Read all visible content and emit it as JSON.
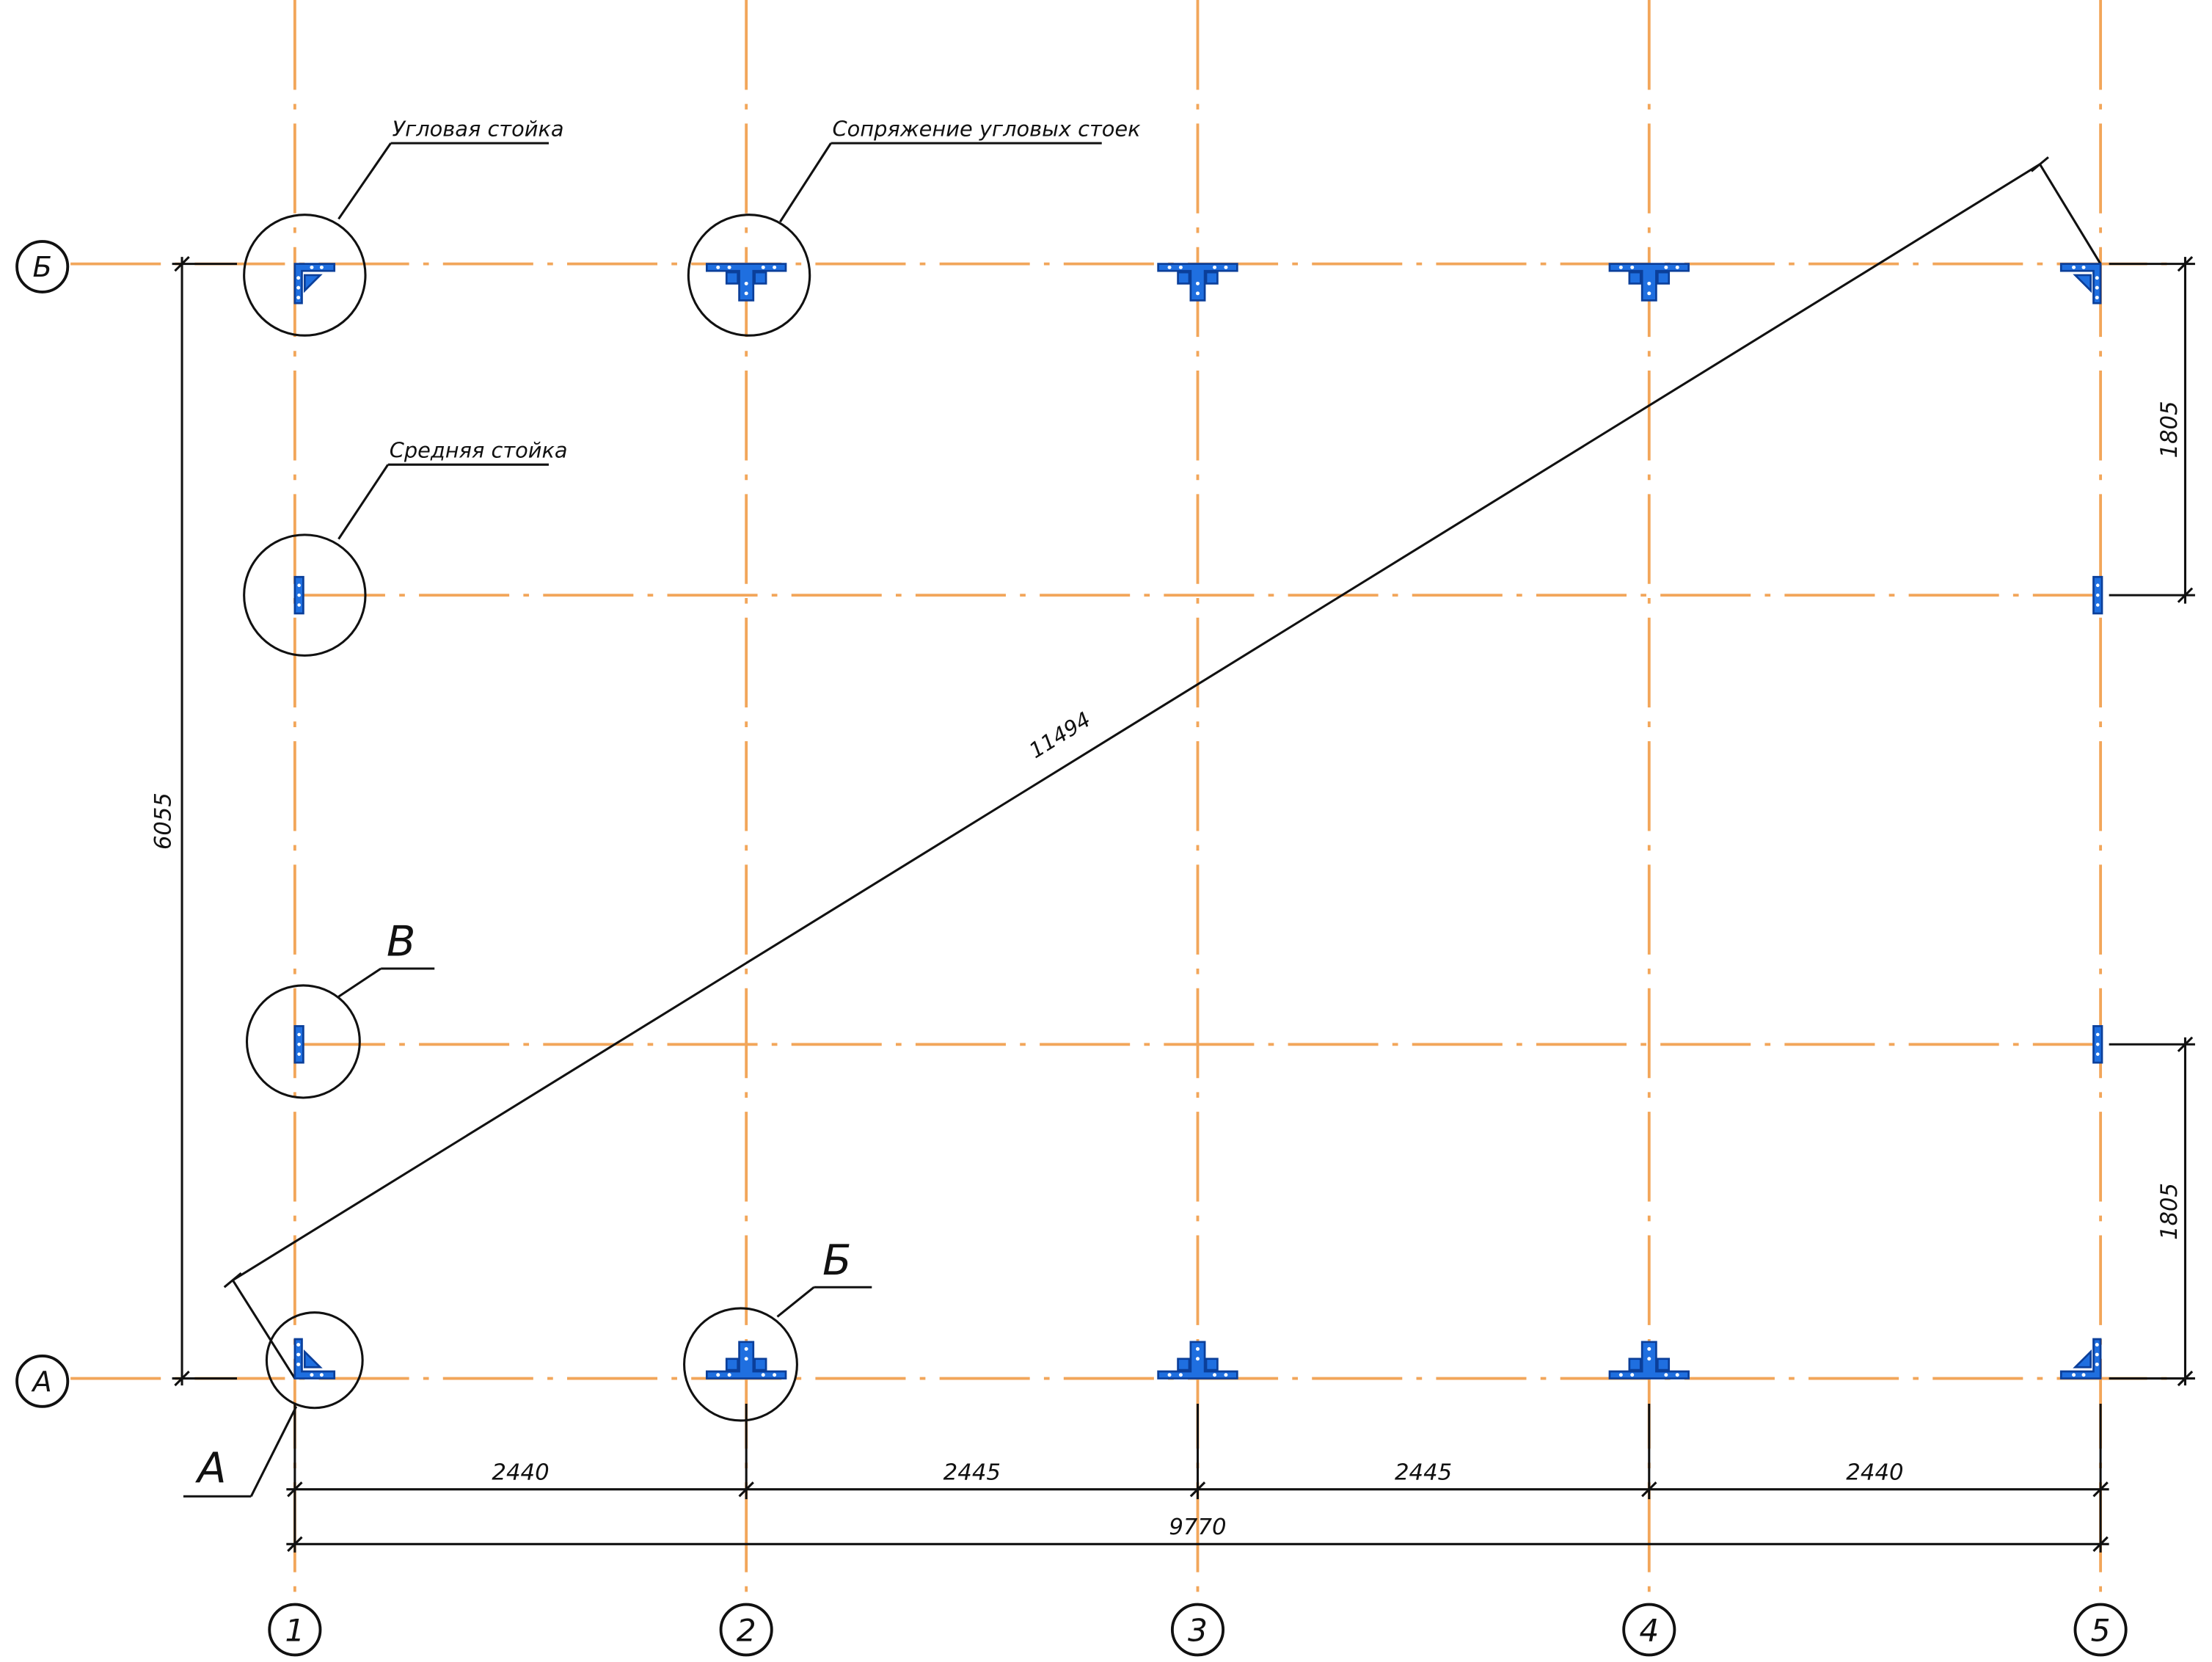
{
  "grid": {
    "columns": [
      "1",
      "2",
      "3",
      "4",
      "5"
    ],
    "rows": [
      "Б",
      "А"
    ]
  },
  "dimensions": {
    "spans": [
      "2440",
      "2445",
      "2445",
      "2440"
    ],
    "total_length": "9770",
    "total_width": "6055",
    "diagonal": "11494",
    "right_top": "1805",
    "right_bottom": "1805"
  },
  "callouts": {
    "corner_post": "Угловая стойка",
    "corner_joint": "Сопряжение угловых стоек",
    "middle_post": "Средняя стойка",
    "node_a": "А",
    "node_b": "Б",
    "node_v": "В"
  },
  "colors": {
    "axis": "#f2a65a",
    "steel": "#1f6fe0",
    "lines": "#111111"
  }
}
